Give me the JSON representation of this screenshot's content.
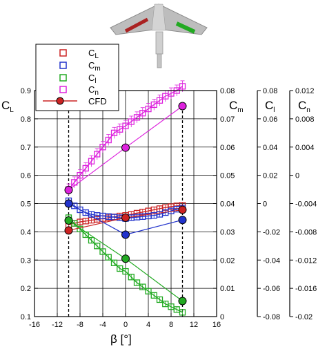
{
  "chart_data": {
    "type": "scatter",
    "xlabel": "β [°]",
    "xlim": [
      -16,
      16
    ],
    "xticks": [
      -16,
      -12,
      -8,
      -4,
      0,
      4,
      8,
      12,
      16
    ],
    "grid": true,
    "axes": {
      "CL": {
        "label": "C",
        "sub": "L",
        "lim": [
          0.1,
          0.9
        ],
        "ticks": [
          "0.1",
          "0.2",
          "0.3",
          "0.4",
          "0.5",
          "0.6",
          "0.7",
          "0.8",
          "0.9"
        ]
      },
      "Cm": {
        "label": "C",
        "sub": "m",
        "lim": [
          0,
          0.08
        ],
        "ticks": [
          "0",
          "0.01",
          "0.02",
          "0.03",
          "0.04",
          "0.05",
          "0.06",
          "0.07",
          "0.08"
        ]
      },
      "Cl": {
        "label": "C",
        "sub": "l",
        "lim": [
          -0.08,
          0.08
        ],
        "ticks": [
          "-0.08",
          "-0.06",
          "-0.04",
          "-0.02",
          "0",
          "0.02",
          "0.04",
          "0.06",
          "0.08"
        ]
      },
      "Cn": {
        "label": "C",
        "sub": "n",
        "lim": [
          -0.02,
          0.012
        ],
        "ticks": [
          "-0.02",
          "-0.016",
          "-0.012",
          "-0.008",
          "-0.004",
          "0",
          "0.004",
          "0.008",
          "0.012"
        ]
      }
    },
    "reference_lines_x": [
      -10,
      10
    ],
    "legend": {
      "position": "top-left",
      "entries": [
        {
          "name": "C",
          "sub": "L",
          "color": "#cc2222",
          "marker": "open-square"
        },
        {
          "name": "C",
          "sub": "m",
          "color": "#2233cc",
          "marker": "open-square"
        },
        {
          "name": "C",
          "sub": "l",
          "color": "#22aa22",
          "marker": "open-square"
        },
        {
          "name": "C",
          "sub": "n",
          "color": "#dd22dd",
          "marker": "open-square"
        },
        {
          "name": "CFD",
          "color": "#cc2222",
          "marker": "filled-circle-line"
        }
      ]
    },
    "series": [
      {
        "name": "CL",
        "axis": "CL",
        "color": "#cc2222",
        "x": [
          -10,
          -9,
          -8,
          -7,
          -6,
          -5,
          -4,
          -3,
          -2,
          -1,
          0,
          1,
          2,
          3,
          4,
          5,
          6,
          7,
          8,
          9,
          10
        ],
        "y": [
          0.425,
          0.43,
          0.435,
          0.438,
          0.441,
          0.444,
          0.447,
          0.45,
          0.453,
          0.456,
          0.458,
          0.462,
          0.466,
          0.47,
          0.474,
          0.478,
          0.482,
          0.486,
          0.489,
          0.492,
          0.494
        ]
      },
      {
        "name": "Cm",
        "axis": "Cm",
        "color": "#2233cc",
        "x": [
          -10,
          -9,
          -8,
          -7,
          -6,
          -5,
          -4,
          -3,
          -2,
          -1,
          0,
          1,
          2,
          3,
          4,
          5,
          6,
          7,
          8,
          9,
          10
        ],
        "y": [
          0.041,
          0.0392,
          0.0378,
          0.0368,
          0.0362,
          0.0358,
          0.0356,
          0.0354,
          0.0352,
          0.035,
          0.0347,
          0.035,
          0.0352,
          0.0354,
          0.0356,
          0.0358,
          0.0362,
          0.0368,
          0.0374,
          0.038,
          0.0384
        ]
      },
      {
        "name": "Cl",
        "axis": "Cl",
        "color": "#22aa22",
        "x": [
          -10,
          -9,
          -8,
          -7,
          -6,
          -5,
          -4,
          -3,
          -2,
          -1,
          0,
          1,
          2,
          3,
          4,
          5,
          6,
          7,
          8,
          9,
          10
        ],
        "y": [
          -0.01,
          -0.014,
          -0.018,
          -0.022,
          -0.026,
          -0.03,
          -0.034,
          -0.038,
          -0.042,
          -0.046,
          -0.048,
          -0.052,
          -0.056,
          -0.059,
          -0.062,
          -0.065,
          -0.068,
          -0.071,
          -0.073,
          -0.075,
          -0.077
        ]
      },
      {
        "name": "Cn",
        "axis": "Cn",
        "color": "#dd22dd",
        "x": [
          -10,
          -9,
          -8,
          -7,
          -6,
          -5,
          -4,
          -3,
          -2,
          -1,
          0,
          1,
          2,
          3,
          4,
          5,
          6,
          7,
          8,
          9,
          10
        ],
        "y": [
          -0.002,
          -0.001,
          0.0,
          0.001,
          0.002,
          0.003,
          0.004,
          0.005,
          0.006,
          0.0065,
          0.007,
          0.0076,
          0.0082,
          0.0088,
          0.0094,
          0.01,
          0.0106,
          0.0112,
          0.0116,
          0.012,
          0.0126
        ]
      },
      {
        "name": "CFD CL",
        "axis": "CL",
        "color": "#cc2222",
        "cfd": true,
        "x": [
          -10,
          0,
          10
        ],
        "y": [
          0.405,
          0.45,
          0.478
        ]
      },
      {
        "name": "CFD Cm",
        "axis": "Cm",
        "color": "#2233cc",
        "cfd": true,
        "x": [
          -10,
          0,
          10
        ],
        "y": [
          0.04,
          0.029,
          0.0342
        ]
      },
      {
        "name": "CFD Cl",
        "axis": "CL",
        "color": "#22aa22",
        "cfd": true,
        "x": [
          -10,
          0,
          10
        ],
        "y": [
          0.44,
          0.305,
          0.155
        ]
      },
      {
        "name": "CFD Cn",
        "axis": "CL",
        "color": "#dd22dd",
        "cfd": true,
        "x": [
          -10,
          0,
          10
        ],
        "y": [
          0.548,
          0.698,
          0.845
        ]
      }
    ]
  }
}
